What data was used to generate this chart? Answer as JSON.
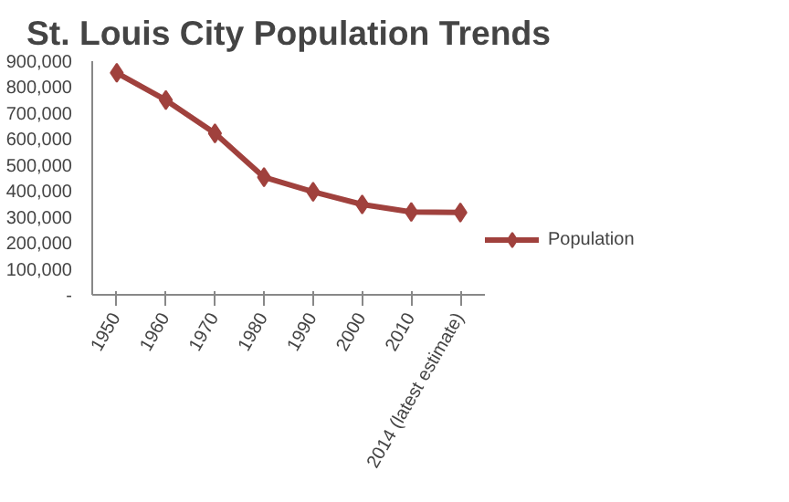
{
  "chart_data": {
    "type": "line",
    "title": "St. Louis City Population Trends",
    "categories": [
      "1950",
      "1960",
      "1970",
      "1980",
      "1990",
      "2000",
      "2010",
      "2014 (latest estimate)"
    ],
    "series": [
      {
        "name": "Population",
        "color": "#a0413d",
        "values": [
          855000,
          750000,
          622000,
          453000,
          397000,
          348000,
          319000,
          317000
        ]
      }
    ],
    "ylim": [
      0,
      900000
    ],
    "yticks": [
      {
        "value": 0,
        "label": "-"
      },
      {
        "value": 100000,
        "label": "100,000"
      },
      {
        "value": 200000,
        "label": "200,000"
      },
      {
        "value": 300000,
        "label": "300,000"
      },
      {
        "value": 400000,
        "label": "400,000"
      },
      {
        "value": 500000,
        "label": "500,000"
      },
      {
        "value": 600000,
        "label": "600,000"
      },
      {
        "value": 700000,
        "label": "700,000"
      },
      {
        "value": 800000,
        "label": "800,000"
      },
      {
        "value": 900000,
        "label": "900,000"
      }
    ],
    "legend": "right",
    "marker": "diamond",
    "line_style": "solid",
    "grid": false
  }
}
